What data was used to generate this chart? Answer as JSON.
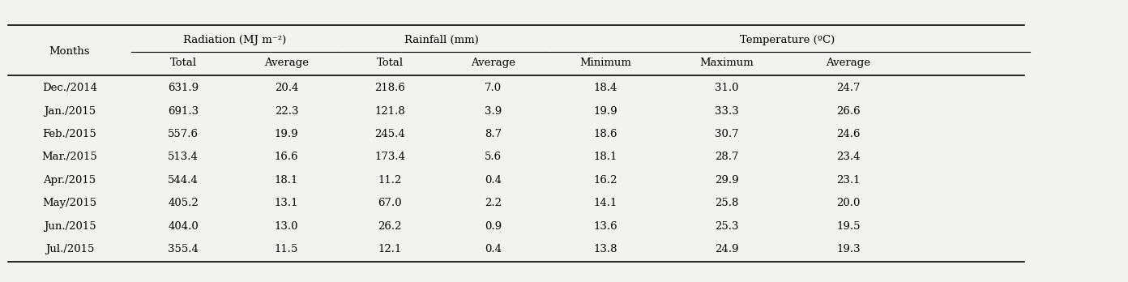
{
  "months": [
    "Dec./2014",
    "Jan./2015",
    "Feb./2015",
    "Mar./2015",
    "Apr./2015",
    "May/2015",
    "Jun./2015",
    "Jul./2015"
  ],
  "radiation_total": [
    "631.9",
    "691.3",
    "557.6",
    "513.4",
    "544.4",
    "405.2",
    "404.0",
    "355.4"
  ],
  "radiation_avg": [
    "20.4",
    "22.3",
    "19.9",
    "16.6",
    "18.1",
    "13.1",
    "13.0",
    "11.5"
  ],
  "rainfall_total": [
    "218.6",
    "121.8",
    "245.4",
    "173.4",
    "11.2",
    "67.0",
    "26.2",
    "12.1"
  ],
  "rainfall_avg": [
    "7.0",
    "3.9",
    "8.7",
    "5.6",
    "0.4",
    "2.2",
    "0.9",
    "0.4"
  ],
  "temp_min": [
    "18.4",
    "19.9",
    "18.6",
    "18.1",
    "16.2",
    "14.1",
    "13.6",
    "13.8"
  ],
  "temp_max": [
    "31.0",
    "33.3",
    "30.7",
    "28.7",
    "29.9",
    "25.8",
    "25.3",
    "24.9"
  ],
  "temp_avg": [
    "24.7",
    "26.6",
    "24.6",
    "23.4",
    "23.1",
    "20.0",
    "19.5",
    "19.3"
  ],
  "header_group1": "Radiation (MJ m⁻²)",
  "header_group2": "Rainfall (mm)",
  "header_group3": "Temperature (ºC)",
  "col_months": "Months",
  "sub_headers": [
    "Total",
    "Average",
    "Total",
    "Average",
    "Minimum",
    "Maximum",
    "Average"
  ],
  "bg_color": "#f2f2ee",
  "line_color": "#000000",
  "text_color": "#000000"
}
